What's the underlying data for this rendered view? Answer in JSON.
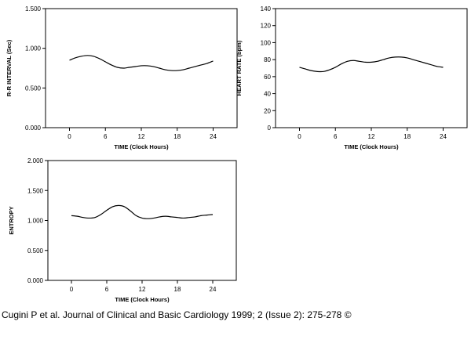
{
  "caption": "Cugini P et al. Journal of Clinical and Basic Cardiology 1999; 2 (Issue 2): 275-278 ©",
  "chart_data": [
    {
      "type": "line",
      "title": "",
      "xlabel": "TIME (Clock Hours)",
      "ylabel": "R-R INTERVAL (Sec)",
      "xlim": [
        -4,
        28
      ],
      "ylim": [
        0,
        1.5
      ],
      "xticks": [
        0,
        6,
        12,
        18,
        24
      ],
      "yticks": [
        0,
        0.5,
        1.0,
        1.5
      ],
      "yticklabels": [
        "0.000",
        "0.500",
        "1.000",
        "1.500"
      ],
      "x": [
        0,
        1,
        2,
        3,
        4,
        5,
        6,
        7,
        8,
        9,
        10,
        11,
        12,
        13,
        14,
        15,
        16,
        17,
        18,
        19,
        20,
        21,
        22,
        23,
        24
      ],
      "values": [
        0.85,
        0.88,
        0.9,
        0.91,
        0.9,
        0.87,
        0.83,
        0.79,
        0.76,
        0.75,
        0.76,
        0.77,
        0.78,
        0.78,
        0.77,
        0.75,
        0.73,
        0.72,
        0.72,
        0.73,
        0.75,
        0.77,
        0.79,
        0.81,
        0.84
      ]
    },
    {
      "type": "line",
      "title": "",
      "xlabel": "TIME (Clock Hours)",
      "ylabel": "HEART RATE (bpm)",
      "xlim": [
        -4,
        28
      ],
      "ylim": [
        0,
        140
      ],
      "xticks": [
        0,
        6,
        12,
        18,
        24
      ],
      "yticks": [
        0,
        20,
        40,
        60,
        80,
        100,
        120,
        140
      ],
      "yticklabels": [
        "0",
        "20",
        "40",
        "60",
        "80",
        "100",
        "120",
        "140"
      ],
      "x": [
        0,
        1,
        2,
        3,
        4,
        5,
        6,
        7,
        8,
        9,
        10,
        11,
        12,
        13,
        14,
        15,
        16,
        17,
        18,
        19,
        20,
        21,
        22,
        23,
        24
      ],
      "values": [
        71,
        69,
        67,
        66,
        66,
        68,
        71,
        75,
        78,
        79,
        78,
        77,
        77,
        78,
        80,
        82,
        83,
        83,
        82,
        80,
        78,
        76,
        74,
        72,
        71
      ]
    },
    {
      "type": "line",
      "title": "",
      "xlabel": "TIME (Clock Hours)",
      "ylabel": "ENTROPY",
      "xlim": [
        -4,
        28
      ],
      "ylim": [
        0,
        2.0
      ],
      "xticks": [
        0,
        6,
        12,
        18,
        24
      ],
      "yticks": [
        0,
        0.5,
        1.0,
        1.5,
        2.0
      ],
      "yticklabels": [
        "0.000",
        "0.500",
        "1.000",
        "1.500",
        "2.000"
      ],
      "x": [
        0,
        1,
        2,
        3,
        4,
        5,
        6,
        7,
        8,
        9,
        10,
        11,
        12,
        13,
        14,
        15,
        16,
        17,
        18,
        19,
        20,
        21,
        22,
        23,
        24
      ],
      "values": [
        1.08,
        1.07,
        1.05,
        1.04,
        1.05,
        1.1,
        1.17,
        1.23,
        1.25,
        1.23,
        1.16,
        1.08,
        1.04,
        1.03,
        1.04,
        1.06,
        1.07,
        1.06,
        1.05,
        1.04,
        1.05,
        1.06,
        1.08,
        1.09,
        1.1
      ]
    }
  ]
}
